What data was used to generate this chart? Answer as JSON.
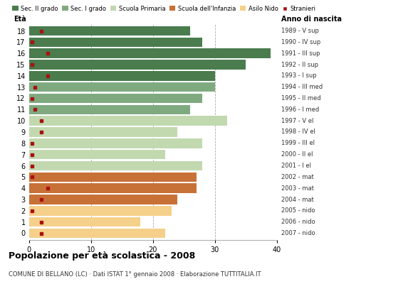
{
  "ages": [
    18,
    17,
    16,
    15,
    14,
    13,
    12,
    11,
    10,
    9,
    8,
    7,
    6,
    5,
    4,
    3,
    2,
    1,
    0
  ],
  "bar_values": [
    26,
    28,
    39,
    35,
    30,
    30,
    28,
    26,
    32,
    24,
    28,
    22,
    28,
    27,
    27,
    24,
    23,
    18,
    22
  ],
  "stranieri_x": [
    2,
    0.5,
    3,
    0.5,
    3,
    1,
    0.5,
    1,
    2,
    2,
    0.5,
    0.5,
    0.5,
    0.5,
    3,
    2,
    0.5,
    2,
    2
  ],
  "right_labels": [
    "1989 - V sup",
    "1990 - IV sup",
    "1991 - III sup",
    "1992 - II sup",
    "1993 - I sup",
    "1994 - III med",
    "1995 - II med",
    "1996 - I med",
    "1997 - V el",
    "1998 - IV el",
    "1999 - III el",
    "2000 - II el",
    "2001 - I el",
    "2002 - mat",
    "2003 - mat",
    "2004 - mat",
    "2005 - nido",
    "2006 - nido",
    "2007 - nido"
  ],
  "bar_colors": {
    "sec2": "#4a7c4e",
    "sec1": "#7faa80",
    "primaria": "#c2d9b0",
    "infanzia": "#c87137",
    "nido": "#f5d08a",
    "stranieri": "#aa1111"
  },
  "category_ranges": {
    "sec2": [
      14,
      18
    ],
    "sec1": [
      11,
      13
    ],
    "primaria": [
      6,
      10
    ],
    "infanzia": [
      3,
      5
    ],
    "nido": [
      0,
      2
    ]
  },
  "legend_labels": [
    "Sec. II grado",
    "Sec. I grado",
    "Scuola Primaria",
    "Scuola dell'Infanzia",
    "Asilo Nido",
    "Stranieri"
  ],
  "title": "Popolazione per età scolastica - 2008",
  "subtitle": "COMUNE DI BELLANO (LC) · Dati ISTAT 1° gennaio 2008 · Elaborazione TUTTITALIA.IT",
  "xlabel_eta": "Età",
  "xlabel_anno": "Anno di nascita",
  "xlim": [
    0,
    40
  ],
  "xticks": [
    0,
    10,
    20,
    30,
    40
  ],
  "background_color": "#ffffff",
  "grid_color": "#aaaaaa"
}
